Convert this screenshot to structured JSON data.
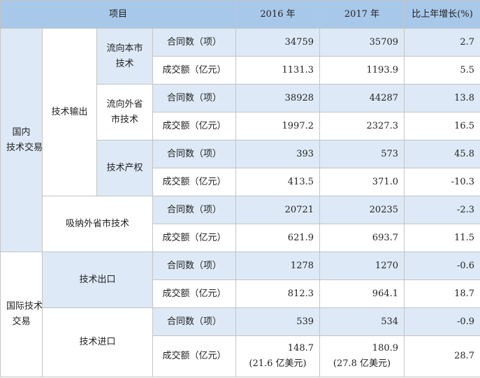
{
  "table": {
    "header": [
      "项目",
      "2016 年",
      "2017 年",
      "比上年增长(%)"
    ],
    "groups": [
      [
        "国内",
        "技术交易"
      ],
      [
        "国际技术",
        "交易"
      ]
    ],
    "sub": [
      "技术输出",
      "吸纳外省市技术",
      "技术出口",
      "技术进口"
    ],
    "items": [
      [
        "流向本市",
        "技术"
      ],
      [
        "流向外省",
        "市技术"
      ],
      [
        "技术产权"
      ]
    ],
    "measures": [
      "合同数（项）",
      "成交额（亿元）"
    ],
    "rows": [
      [
        "34759",
        "35709",
        "2.7"
      ],
      [
        "1131.3",
        "1193.9",
        "5.5"
      ],
      [
        "38928",
        "44287",
        "13.8"
      ],
      [
        "1997.2",
        "2327.3",
        "16.5"
      ],
      [
        "393",
        "573",
        "45.8"
      ],
      [
        "413.5",
        "371.0",
        "-10.3"
      ],
      [
        "20721",
        "20235",
        "-2.3"
      ],
      [
        "621.9",
        "693.7",
        "11.5"
      ],
      [
        "1278",
        "1270",
        "-0.6"
      ],
      [
        "812.3",
        "964.1",
        "18.7"
      ],
      [
        "539",
        "534",
        "-0.9"
      ],
      [
        [
          "148.7",
          "(21.6 亿美元)"
        ],
        [
          "180.9",
          "(27.8 亿美元)"
        ],
        "28.7"
      ]
    ]
  }
}
